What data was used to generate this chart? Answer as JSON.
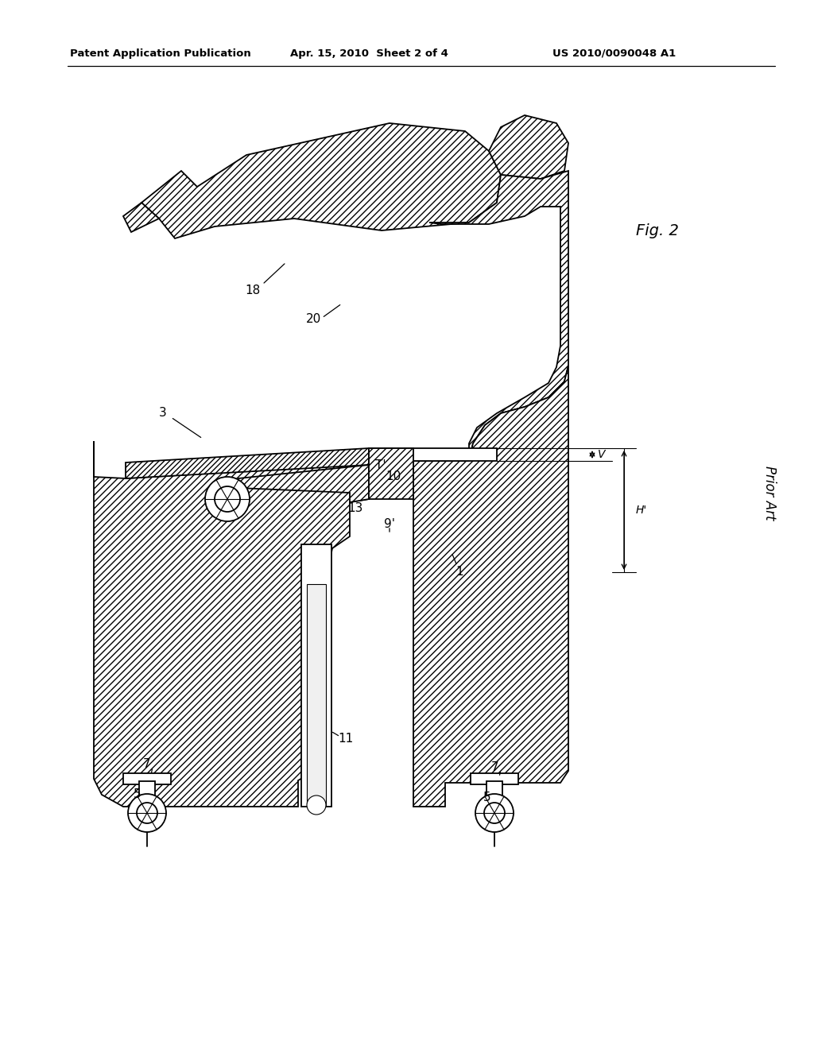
{
  "header_left": "Patent Application Publication",
  "header_mid": "Apr. 15, 2010  Sheet 2 of 4",
  "header_right": "US 2010/0090048 A1",
  "fig_label": "Fig. 2",
  "prior_art_label": "Prior Art",
  "bg": "#ffffff"
}
